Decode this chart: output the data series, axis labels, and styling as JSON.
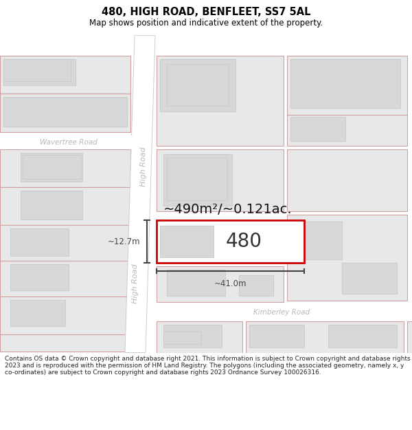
{
  "title": "480, HIGH ROAD, BENFLEET, SS7 5AL",
  "subtitle": "Map shows position and indicative extent of the property.",
  "area_text": "~490m²/~0.121ac.",
  "property_label": "480",
  "dim_width": "~41.0m",
  "dim_height": "~12.7m",
  "road_label_top": "High Road",
  "road_label_bottom": "High Road",
  "side_road_label": "Wavertree Road",
  "bottom_road_label": "Kimberley Road",
  "copyright_lines": [
    "Contains OS data © Crown copyright and database right 2021. This information is subject to Crown copyright and database rights 2023 and is reproduced with the permission of",
    "HM Land Registry. The polygons (including the associated geometry, namely x, y co-ordinates) are subject to Crown copyright and database rights 2023 Ordnance Survey",
    "100026316."
  ],
  "bg_color": "#ffffff",
  "map_bg": "#f2f2f2",
  "outer_fill": "#f2f2f2",
  "plot_fill": "#e8e8e8",
  "plot_edge": "#d0a0a0",
  "inner_fill": "#d8d8d8",
  "inner_edge": "#cccccc",
  "highlight_fill": "#ffffff",
  "highlight_edge": "#cc0000",
  "road_fill": "#ffffff",
  "road_edge": "#cccccc",
  "text_road_color": "#b8b8b8",
  "title_color": "#000000",
  "dim_color": "#444444",
  "area_color": "#111111"
}
